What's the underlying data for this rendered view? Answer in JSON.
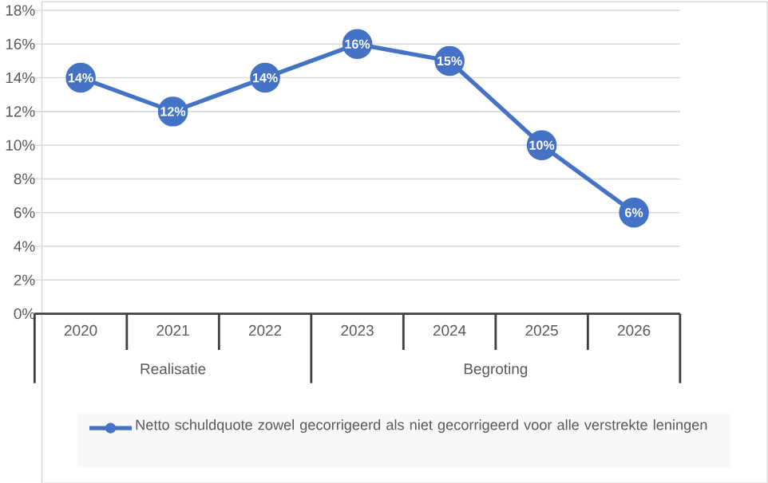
{
  "chart_data": {
    "type": "line",
    "categories": [
      "2020",
      "2021",
      "2022",
      "2023",
      "2024",
      "2025",
      "2026"
    ],
    "series": [
      {
        "name": "Netto schuldquote zowel gecorrigeerd als niet gecorrigeerd voor alle verstrekte leningen",
        "color": "#4472c4",
        "values": [
          14,
          12,
          14,
          16,
          15,
          10,
          6
        ],
        "value_labels": [
          "14%",
          "12%",
          "14%",
          "16%",
          "15%",
          "10%",
          "6%"
        ]
      }
    ],
    "ylim": [
      0,
      18
    ],
    "yticks": [
      {
        "value": 0,
        "label": "0%"
      },
      {
        "value": 2,
        "label": "2%"
      },
      {
        "value": 4,
        "label": "4%"
      },
      {
        "value": 6,
        "label": "6%"
      },
      {
        "value": 8,
        "label": "8%"
      },
      {
        "value": 10,
        "label": "10%"
      },
      {
        "value": 12,
        "label": "12%"
      },
      {
        "value": 14,
        "label": "14%"
      },
      {
        "value": 16,
        "label": "16%"
      },
      {
        "value": 18,
        "label": "18%"
      }
    ],
    "annotations": [
      "Realisatie",
      "Begroting"
    ],
    "grid": "y",
    "legend": "bottom",
    "marker": "circle",
    "line_style": "solid"
  }
}
